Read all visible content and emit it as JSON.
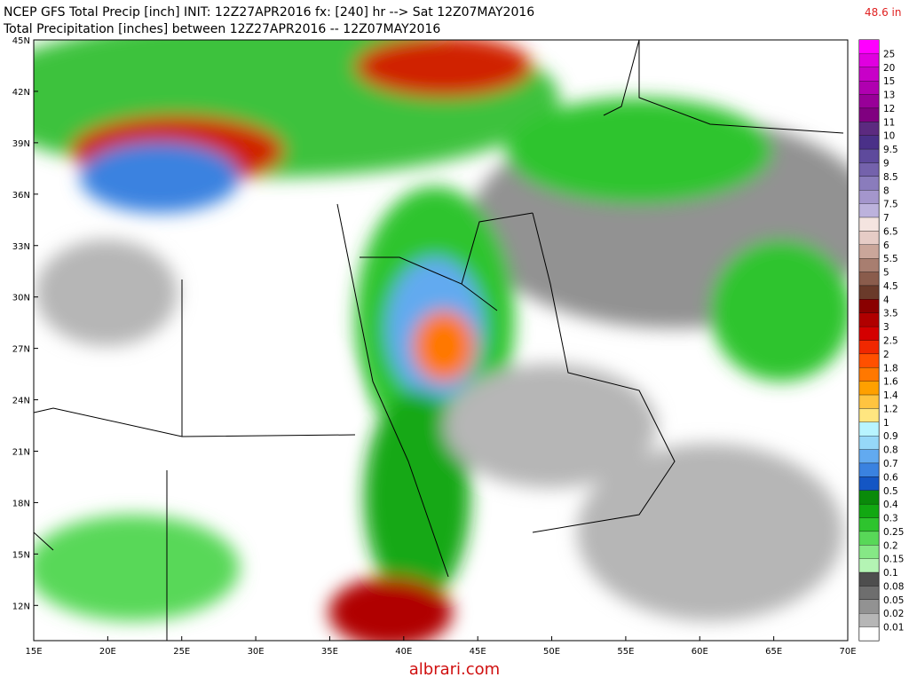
{
  "header": {
    "title": "NCEP GFS Total Precip [inch] INIT: 12Z27APR2016 fx: [240] hr --> Sat 12Z07MAY2016",
    "subtitle": "Total Precipitation [inches] between 12Z27APR2016 -- 12Z07MAY2016",
    "max_value": "48.6 in"
  },
  "map": {
    "lat_labels": [
      "45N",
      "42N",
      "39N",
      "36N",
      "33N",
      "30N",
      "27N",
      "24N",
      "21N",
      "18N",
      "15N",
      "12N"
    ],
    "lon_labels": [
      "15E",
      "20E",
      "25E",
      "30E",
      "35E",
      "40E",
      "45E",
      "50E",
      "55E",
      "60E",
      "65E",
      "70E"
    ]
  },
  "colorbar": {
    "levels": [
      25,
      20,
      15,
      13,
      12,
      11,
      10,
      9.5,
      9,
      8.5,
      8,
      7.5,
      7,
      6.5,
      6,
      5.5,
      5,
      4.5,
      4,
      3.5,
      3,
      2.5,
      2,
      1.8,
      1.6,
      1.4,
      1.2,
      1,
      0.9,
      0.8,
      0.7,
      0.6,
      0.5,
      0.4,
      0.3,
      0.25,
      0.2,
      0.15,
      0.1,
      0.08,
      0.05,
      0.02,
      0.01
    ],
    "colors": [
      "#e000e0",
      "#c800c8",
      "#b000b0",
      "#980098",
      "#800080",
      "#5c2a80",
      "#4a3088",
      "#5e4a9c",
      "#7462ac",
      "#8a7cbc",
      "#a496cc",
      "#bcb2dc",
      "#f4e4e0",
      "#e6ccc6",
      "#caa69a",
      "#a87e70",
      "#8a5c4c",
      "#6a3a2a",
      "#8a0000",
      "#b00000",
      "#d40000",
      "#f02800",
      "#ff5000",
      "#ff7800",
      "#ffa000",
      "#ffc440",
      "#ffe680",
      "#b8f4ff",
      "#96d8f8",
      "#62aaf0",
      "#3a82e0",
      "#1456c4",
      "#0a8a0a",
      "#12a812",
      "#2ec42e",
      "#58d858",
      "#86e886",
      "#b4f4b4",
      "#4e4e4e",
      "#6e6e6e",
      "#929292",
      "#b6b6b6",
      "#ffffff"
    ]
  },
  "watermark": "albrari.com"
}
